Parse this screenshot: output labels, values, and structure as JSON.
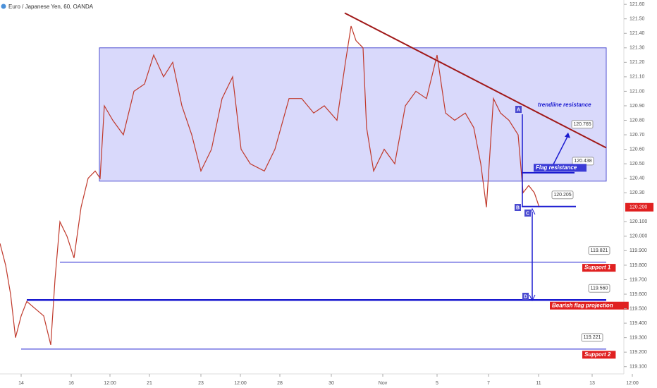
{
  "chart_data": {
    "type": "line",
    "title": "Euro / Japanese Yen, 60, OANDA",
    "color": "#c0392b",
    "x": [
      0,
      8,
      15,
      22,
      30,
      38,
      50,
      62,
      72,
      78,
      85,
      95,
      105,
      115,
      125,
      135,
      142,
      148,
      160,
      175,
      190,
      205,
      218,
      232,
      245,
      258,
      272,
      285,
      300,
      315,
      330,
      342,
      355,
      375,
      390,
      410,
      428,
      445,
      460,
      478,
      490,
      498,
      505,
      515,
      520,
      530,
      545,
      560,
      575,
      590,
      605,
      620,
      632,
      645,
      660,
      672,
      682,
      690,
      700,
      710,
      722,
      735,
      742,
      750,
      758,
      765
    ],
    "values": [
      119.95,
      119.8,
      119.6,
      119.3,
      119.45,
      119.55,
      119.5,
      119.45,
      119.25,
      119.7,
      120.1,
      120.0,
      119.85,
      120.2,
      120.4,
      120.45,
      120.4,
      120.9,
      120.8,
      120.7,
      121.0,
      121.05,
      121.25,
      121.1,
      121.2,
      120.9,
      120.7,
      120.45,
      120.6,
      120.95,
      121.1,
      120.6,
      120.5,
      120.45,
      120.6,
      120.95,
      120.95,
      120.85,
      120.9,
      120.8,
      121.2,
      121.45,
      121.35,
      121.3,
      120.75,
      120.45,
      120.6,
      120.5,
      120.9,
      121.0,
      120.95,
      121.25,
      120.85,
      120.8,
      120.85,
      120.75,
      120.5,
      120.2,
      120.95,
      120.85,
      120.8,
      120.7,
      120.3,
      120.35,
      120.3,
      120.2
    ],
    "xlim": [
      0,
      885
    ],
    "ylim": [
      119.05,
      121.63
    ],
    "xticks": [
      {
        "value": 30,
        "label": "14"
      },
      {
        "value": 101,
        "label": "16"
      },
      {
        "value": 156,
        "label": "12:00"
      },
      {
        "value": 212,
        "label": "21"
      },
      {
        "value": 285,
        "label": "23"
      },
      {
        "value": 341,
        "label": "12:00"
      },
      {
        "value": 397,
        "label": "28"
      },
      {
        "value": 470,
        "label": "30"
      },
      {
        "value": 543,
        "label": "Nov"
      },
      {
        "value": 620,
        "label": "5"
      },
      {
        "value": 693,
        "label": "7"
      },
      {
        "value": 764,
        "label": "11"
      },
      {
        "value": 840,
        "label": "13"
      },
      {
        "value": 897,
        "label": "12:00"
      }
    ],
    "yticks": [
      {
        "value": 121.6,
        "label": "121.60"
      },
      {
        "value": 121.5,
        "label": "121.50"
      },
      {
        "value": 121.4,
        "label": "121.40"
      },
      {
        "value": 121.3,
        "label": "121.30"
      },
      {
        "value": 121.2,
        "label": "121.20"
      },
      {
        "value": 121.1,
        "label": "121.10"
      },
      {
        "value": 121.0,
        "label": "121.00"
      },
      {
        "value": 120.9,
        "label": "120.90"
      },
      {
        "value": 120.8,
        "label": "120.80"
      },
      {
        "value": 120.7,
        "label": "120.70"
      },
      {
        "value": 120.6,
        "label": "120.60"
      },
      {
        "value": 120.5,
        "label": "120.50"
      },
      {
        "value": 120.4,
        "label": "120.40"
      },
      {
        "value": 120.3,
        "label": "120.30"
      },
      {
        "value": 120.1,
        "label": "120.100"
      },
      {
        "value": 120.0,
        "label": "120.000"
      },
      {
        "value": 119.9,
        "label": "119.900"
      },
      {
        "value": 119.8,
        "label": "119.800"
      },
      {
        "value": 119.7,
        "label": "119.700"
      },
      {
        "value": 119.6,
        "label": "119.600"
      },
      {
        "value": 119.5,
        "label": "119.500"
      },
      {
        "value": 119.4,
        "label": "119.400"
      },
      {
        "value": 119.3,
        "label": "119.300"
      },
      {
        "value": 119.2,
        "label": "119.200"
      },
      {
        "value": 119.1,
        "label": "119.100"
      }
    ],
    "current_price": {
      "value": 120.2,
      "label": "120.200"
    },
    "range": [
      120.38,
      121.3
    ],
    "trendline": [
      121.54,
      120.61
    ],
    "levels": [
      {
        "value": 119.821,
        "value_label": "119.821",
        "label": "Support 1"
      },
      {
        "value": 119.56,
        "value_label": "119.560",
        "label": "Bearish flag projection"
      },
      {
        "value": 119.221,
        "value_label": "119.221",
        "label": "Support 2"
      },
      {
        "value": 120.438,
        "value_label": "120.438",
        "label": "Flag resistance"
      },
      {
        "value": 120.205,
        "value_label": "120.205"
      }
    ],
    "trend_target": {
      "value": 120.765,
      "value_label": "120.765",
      "label": "trendline resistance"
    },
    "points": [
      "A",
      "B",
      "C",
      "D"
    ]
  }
}
